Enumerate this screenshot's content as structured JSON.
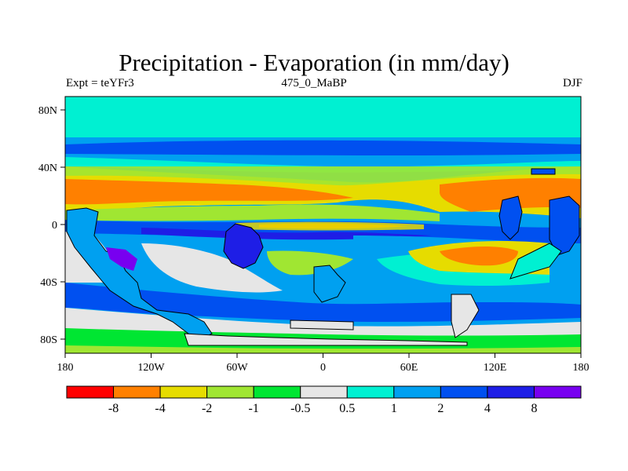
{
  "title": "Precipitation - Evaporation (in mm/day)",
  "subtitle_left": "Expt = teYFr3",
  "subtitle_center": "475_0_MaBP",
  "subtitle_right": "DJF",
  "map": {
    "lon_ticks": [
      "180",
      "120W",
      "60W",
      "0",
      "60E",
      "120E",
      "180"
    ],
    "lat_ticks": [
      "80N",
      "40N",
      "0",
      "40S",
      "80S"
    ]
  },
  "colorbar": {
    "colors": [
      "#ff0000",
      "#ff8000",
      "#e6dc00",
      "#a0e632",
      "#00e632",
      "#e6e6e6",
      "#00f0d2",
      "#00a0f0",
      "#0050f0",
      "#1e1ee6",
      "#7800f0"
    ],
    "labels": [
      "-8",
      "-4",
      "-2",
      "-1",
      "-0.5",
      "0.5",
      "1",
      "2",
      "4",
      "8"
    ]
  },
  "palette": {
    "dry_strong": "#ff8000",
    "dry": "#e6dc00",
    "dry_weak": "#a0e632",
    "near_zero_dry": "#00e632",
    "neutral": "#e6e6e6",
    "wet_weak": "#00f0d2",
    "wet": "#00a0f0",
    "wet_strong": "#0050f0",
    "very_wet": "#1e1ee6",
    "extreme_wet": "#7800f0"
  }
}
